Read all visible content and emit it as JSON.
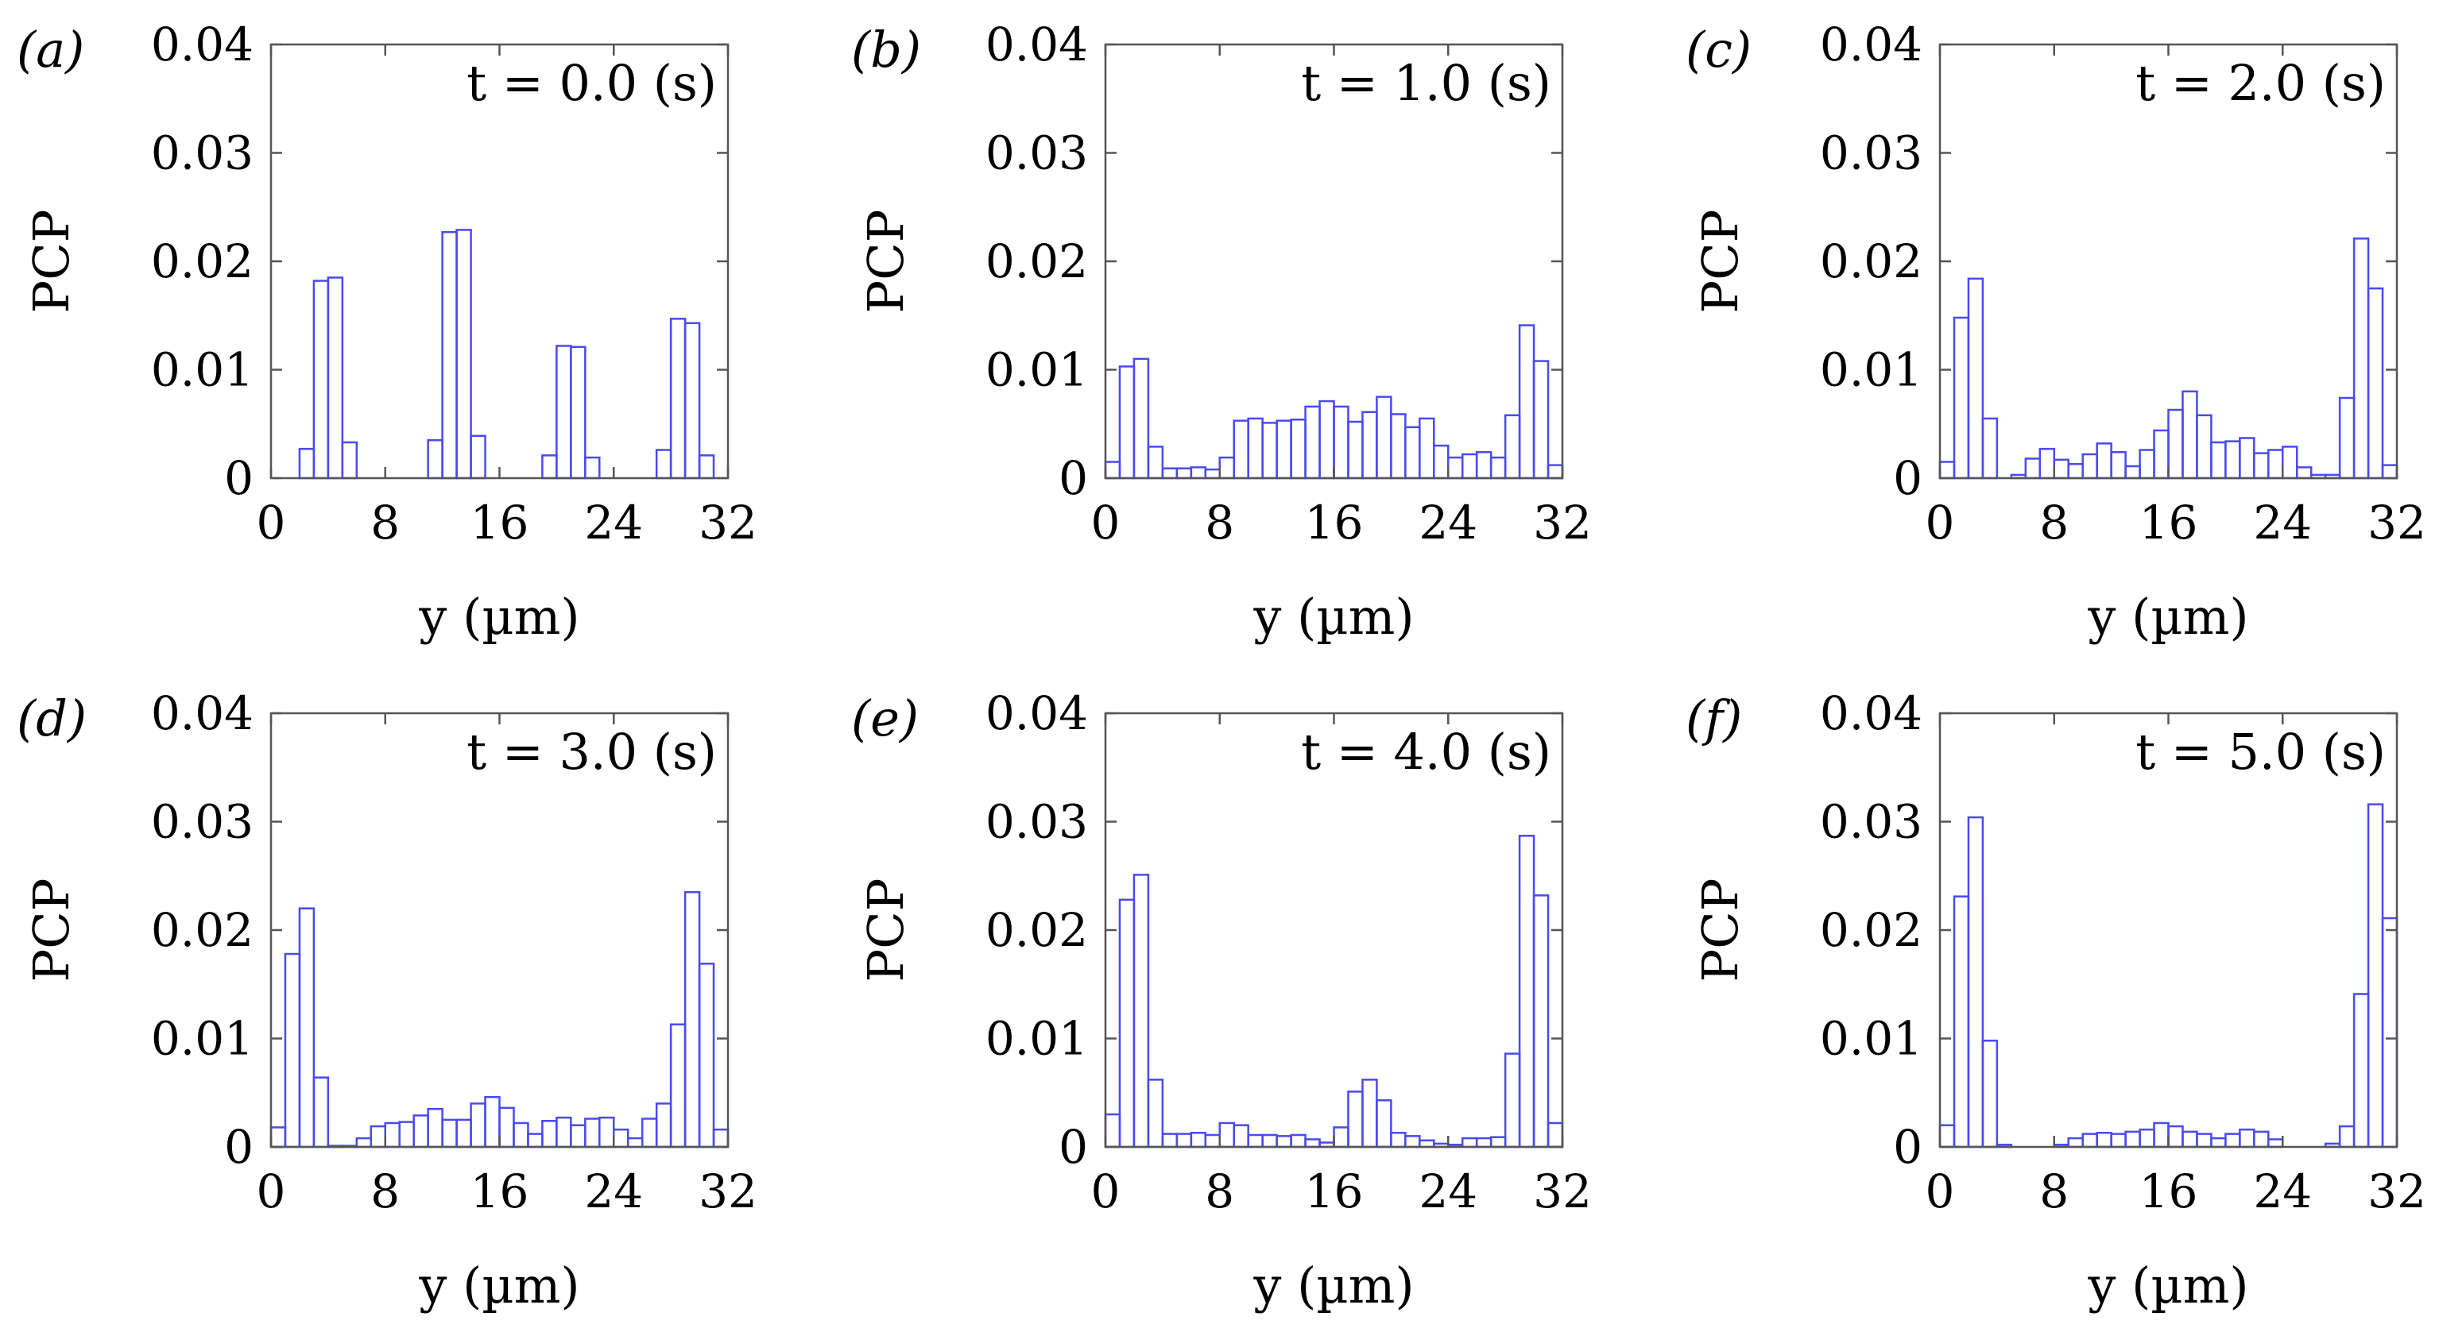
{
  "chart_data": [
    {
      "type": "bar",
      "panel_label": "(a)",
      "annotation": "t = 0.0 (s)",
      "xlabel": "y (µm)",
      "ylabel": "PCP",
      "xlim": [
        0,
        32
      ],
      "ylim": [
        0,
        0.04
      ],
      "xticks": [
        "0",
        "8",
        "16",
        "24",
        "32"
      ],
      "yticks": [
        "0",
        "0.01",
        "0.02",
        "0.03",
        "0.04"
      ],
      "bin_width": 1,
      "bar_color": "#4a4af0",
      "values": [
        0,
        0,
        0.0027,
        0.0182,
        0.0185,
        0.0033,
        0,
        0,
        0,
        0,
        0,
        0.0035,
        0.0227,
        0.0229,
        0.0039,
        0,
        0,
        0,
        0,
        0.0021,
        0.0122,
        0.0121,
        0.0019,
        0,
        0,
        0,
        0,
        0.0026,
        0.0147,
        0.0143,
        0.0021,
        0
      ]
    },
    {
      "type": "bar",
      "panel_label": "(b)",
      "annotation": "t = 1.0 (s)",
      "xlabel": "y (µm)",
      "ylabel": "PCP",
      "xlim": [
        0,
        32
      ],
      "ylim": [
        0,
        0.04
      ],
      "xticks": [
        "0",
        "8",
        "16",
        "24",
        "32"
      ],
      "yticks": [
        "0",
        "0.01",
        "0.02",
        "0.03",
        "0.04"
      ],
      "bin_width": 1,
      "bar_color": "#4a4af0",
      "values": [
        0.0015,
        0.0103,
        0.011,
        0.0029,
        0.0009,
        0.0009,
        0.001,
        0.0008,
        0.0019,
        0.0053,
        0.0055,
        0.0051,
        0.0053,
        0.0054,
        0.0066,
        0.0071,
        0.0066,
        0.0052,
        0.0061,
        0.0075,
        0.0059,
        0.0047,
        0.0055,
        0.003,
        0.0019,
        0.0022,
        0.0024,
        0.0019,
        0.0058,
        0.0141,
        0.0108,
        0.0012
      ]
    },
    {
      "type": "bar",
      "panel_label": "(c)",
      "annotation": "t = 2.0 (s)",
      "xlabel": "y (µm)",
      "ylabel": "PCP",
      "xlim": [
        0,
        32
      ],
      "ylim": [
        0,
        0.04
      ],
      "xticks": [
        "0",
        "8",
        "16",
        "24",
        "32"
      ],
      "yticks": [
        "0",
        "0.01",
        "0.02",
        "0.03",
        "0.04"
      ],
      "bin_width": 1,
      "bar_color": "#4a4af0",
      "values": [
        0.0015,
        0.0148,
        0.0184,
        0.0055,
        0,
        0.0003,
        0.0018,
        0.0027,
        0.0017,
        0.0013,
        0.0022,
        0.0032,
        0.0024,
        0.0011,
        0.0026,
        0.0044,
        0.0063,
        0.008,
        0.0058,
        0.0033,
        0.0034,
        0.0037,
        0.0023,
        0.0026,
        0.0029,
        0.001,
        0.0003,
        0.0003,
        0.0074,
        0.0221,
        0.0175,
        0.0012
      ]
    },
    {
      "type": "bar",
      "panel_label": "(d)",
      "annotation": "t = 3.0 (s)",
      "xlabel": "y (µm)",
      "ylabel": "PCP",
      "xlim": [
        0,
        32
      ],
      "ylim": [
        0,
        0.04
      ],
      "xticks": [
        "0",
        "8",
        "16",
        "24",
        "32"
      ],
      "yticks": [
        "0",
        "0.01",
        "0.02",
        "0.03",
        "0.04"
      ],
      "bin_width": 1,
      "bar_color": "#4a4af0",
      "values": [
        0.0018,
        0.0178,
        0.022,
        0.0064,
        0.0001,
        0.0001,
        0.0008,
        0.0019,
        0.0022,
        0.0023,
        0.0029,
        0.0035,
        0.0025,
        0.0025,
        0.004,
        0.0046,
        0.0036,
        0.0022,
        0.0012,
        0.0024,
        0.0027,
        0.002,
        0.0026,
        0.0027,
        0.0016,
        0.0008,
        0.0026,
        0.004,
        0.0113,
        0.0235,
        0.0169,
        0.0016
      ]
    },
    {
      "type": "bar",
      "panel_label": "(e)",
      "annotation": "t = 4.0 (s)",
      "xlabel": "y (µm)",
      "ylabel": "PCP",
      "xlim": [
        0,
        32
      ],
      "ylim": [
        0,
        0.04
      ],
      "xticks": [
        "0",
        "8",
        "16",
        "24",
        "32"
      ],
      "yticks": [
        "0",
        "0.01",
        "0.02",
        "0.03",
        "0.04"
      ],
      "bin_width": 1,
      "bar_color": "#4a4af0",
      "values": [
        0.003,
        0.0228,
        0.0251,
        0.0062,
        0.0012,
        0.0012,
        0.0013,
        0.0011,
        0.0022,
        0.002,
        0.0011,
        0.0011,
        0.001,
        0.0011,
        0.0007,
        0.0004,
        0.0018,
        0.0051,
        0.0062,
        0.0043,
        0.0013,
        0.001,
        0.0006,
        0.0003,
        0.0002,
        0.0008,
        0.0008,
        0.0009,
        0.0086,
        0.0287,
        0.0232,
        0.0022
      ]
    },
    {
      "type": "bar",
      "panel_label": "(f)",
      "annotation": "t = 5.0 (s)",
      "xlabel": "y (µm)",
      "ylabel": "PCP",
      "xlim": [
        0,
        32
      ],
      "ylim": [
        0,
        0.04
      ],
      "xticks": [
        "0",
        "8",
        "16",
        "24",
        "32"
      ],
      "yticks": [
        "0",
        "0.01",
        "0.02",
        "0.03",
        "0.04"
      ],
      "bin_width": 1,
      "bar_color": "#4a4af0",
      "values": [
        0.002,
        0.0231,
        0.0304,
        0.0098,
        0.0002,
        0,
        0,
        0,
        0.0002,
        0.0008,
        0.0012,
        0.0013,
        0.0012,
        0.0014,
        0.0016,
        0.0022,
        0.0019,
        0.0014,
        0.0012,
        0.0008,
        0.0012,
        0.0016,
        0.0014,
        0.0007,
        0,
        0,
        0,
        0.0003,
        0.0019,
        0.0141,
        0.0316,
        0.0211
      ]
    }
  ]
}
